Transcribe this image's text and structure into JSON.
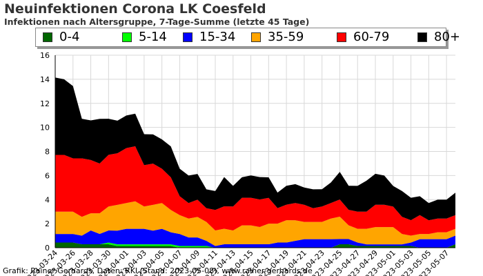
{
  "chart_data": {
    "type": "area",
    "stacked": true,
    "title": "Neuinfektionen Corona LK Coesfeld",
    "subtitle": "Infektionen nach Altersgruppe, 7-Tage-Summe (letzte 45 Tage)",
    "x_tick_labels": [
      "2023-03-24",
      "2023-03-26",
      "2023-03-28",
      "2023-03-30",
      "2023-04-01",
      "2023-04-03",
      "2023-04-05",
      "2023-04-07",
      "2023-04-09",
      "2023-04-11",
      "2023-04-13",
      "2023-04-15",
      "2023-04-17",
      "2023-04-19",
      "2023-04-21",
      "2023-04-23",
      "2023-04-25",
      "2023-04-27",
      "2023-04-29",
      "2023-05-01",
      "2023-05-03",
      "2023-05-05",
      "2023-05-07"
    ],
    "y_ticks": [
      0,
      2,
      4,
      6,
      8,
      10,
      12,
      14,
      16
    ],
    "ylim": [
      0,
      16
    ],
    "grid": true,
    "legend_position": "top",
    "x": [
      "2023-03-24",
      "2023-03-25",
      "2023-03-26",
      "2023-03-27",
      "2023-03-28",
      "2023-03-29",
      "2023-03-30",
      "2023-03-31",
      "2023-04-01",
      "2023-04-02",
      "2023-04-03",
      "2023-04-04",
      "2023-04-05",
      "2023-04-06",
      "2023-04-07",
      "2023-04-08",
      "2023-04-09",
      "2023-04-10",
      "2023-04-11",
      "2023-04-12",
      "2023-04-13",
      "2023-04-14",
      "2023-04-15",
      "2023-04-16",
      "2023-04-17",
      "2023-04-18",
      "2023-04-19",
      "2023-04-20",
      "2023-04-21",
      "2023-04-22",
      "2023-04-23",
      "2023-04-24",
      "2023-04-25",
      "2023-04-26",
      "2023-04-27",
      "2023-04-28",
      "2023-04-29",
      "2023-04-30",
      "2023-05-01",
      "2023-05-02",
      "2023-05-03",
      "2023-05-04",
      "2023-05-05",
      "2023-05-06",
      "2023-05-07",
      "2023-05-08"
    ],
    "series": [
      {
        "name": "0-4",
        "color": "#006600",
        "values": [
          0.43,
          0.43,
          0.43,
          0.29,
          0.29,
          0.29,
          0.29,
          0.14,
          0.14,
          0.14,
          0.14,
          0.14,
          0.14,
          0.14,
          0,
          0,
          0,
          0,
          0,
          0,
          0,
          0,
          0,
          0,
          0,
          0,
          0,
          0,
          0,
          0,
          0,
          0,
          0.29,
          0.29,
          0.14,
          0.14,
          0.14,
          0.14,
          0.14,
          0.14,
          0.14,
          0,
          0,
          0,
          0,
          0.29
        ]
      },
      {
        "name": "5-14",
        "color": "#00ff00",
        "values": [
          0,
          0,
          0,
          0,
          0,
          0,
          0.14,
          0.14,
          0.14,
          0.14,
          0.14,
          0.14,
          0.14,
          0.14,
          0.14,
          0.14,
          0.14,
          0.14,
          0,
          0,
          0,
          0,
          0,
          0,
          0,
          0,
          0,
          0,
          0,
          0,
          0,
          0,
          0,
          0,
          0,
          0,
          0,
          0,
          0,
          0,
          0,
          0,
          0,
          0,
          0,
          0
        ]
      },
      {
        "name": "15-34",
        "color": "#0000ff",
        "values": [
          0.71,
          0.71,
          0.71,
          0.71,
          1.14,
          0.86,
          1.0,
          1.14,
          1.29,
          1.29,
          1.29,
          1.14,
          1.29,
          1.0,
          1.0,
          0.71,
          0.71,
          0.43,
          0.14,
          0.29,
          0.29,
          0.29,
          0.29,
          0.29,
          0.29,
          0.43,
          0.43,
          0.57,
          0.71,
          0.71,
          0.71,
          0.71,
          0.43,
          0.43,
          0.29,
          0.14,
          0.14,
          0.14,
          0.14,
          0.14,
          0.29,
          0.71,
          0.71,
          0.71,
          0.71,
          0.71
        ]
      },
      {
        "name": "35-59",
        "color": "#ffa500",
        "values": [
          1.86,
          1.86,
          1.86,
          1.57,
          1.43,
          1.71,
          2.0,
          2.14,
          2.14,
          2.29,
          1.86,
          2.14,
          2.14,
          1.86,
          1.57,
          1.57,
          1.71,
          1.57,
          1.29,
          1.29,
          1.14,
          1.57,
          1.57,
          1.43,
          1.71,
          1.57,
          1.86,
          1.71,
          1.43,
          1.43,
          1.43,
          1.71,
          1.86,
          1.14,
          1.14,
          1.29,
          1.43,
          1.43,
          1.43,
          0.86,
          0.57,
          0.43,
          0.43,
          0.57,
          0.57,
          0.57
        ]
      },
      {
        "name": "60-79",
        "color": "#ff0000",
        "values": [
          4.71,
          4.71,
          4.43,
          4.86,
          4.43,
          4.14,
          4.29,
          4.29,
          4.57,
          4.57,
          3.43,
          3.43,
          2.86,
          2.71,
          1.57,
          1.29,
          1.43,
          1.14,
          1.71,
          1.86,
          2.0,
          2.29,
          2.29,
          2.29,
          2.14,
          1.29,
          1.29,
          1.43,
          1.43,
          1.14,
          1.29,
          1.29,
          1.43,
          1.29,
          1.43,
          1.43,
          1.86,
          1.86,
          1.71,
          1.43,
          1.29,
          1.57,
          1.14,
          1.14,
          1.14,
          1.14
        ]
      },
      {
        "name": "80+",
        "color": "#000000",
        "values": [
          6.43,
          6.29,
          6.0,
          3.29,
          3.29,
          3.71,
          3.0,
          2.71,
          2.71,
          2.71,
          2.57,
          2.43,
          2.43,
          2.57,
          2.29,
          2.29,
          2.14,
          1.57,
          1.57,
          2.43,
          1.71,
          1.71,
          1.86,
          1.86,
          1.71,
          1.29,
          1.57,
          1.57,
          1.43,
          1.57,
          1.43,
          1.71,
          2.29,
          2.0,
          2.14,
          2.57,
          2.57,
          2.43,
          1.71,
          2.14,
          1.86,
          1.57,
          1.43,
          1.57,
          1.57,
          1.86
        ]
      }
    ]
  },
  "footer": "Grafik: Rainer Gerhards, Daten: RKI (Stand: 2023-05-08), www.rainer-gerhards.de"
}
